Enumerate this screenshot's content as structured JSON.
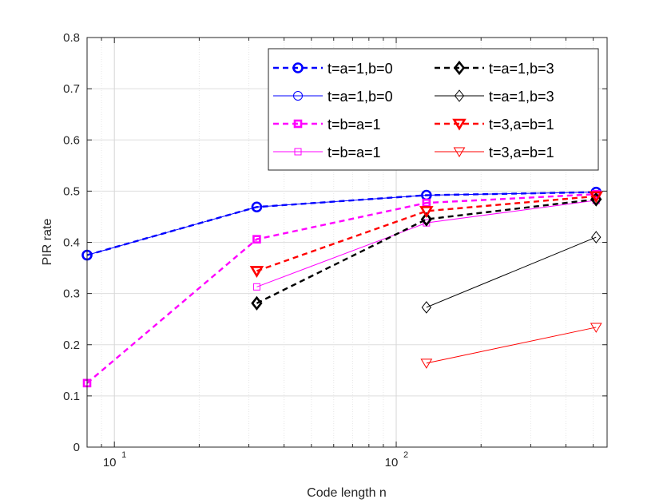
{
  "chart_data": {
    "type": "line",
    "title": "",
    "xlabel": "Code length n",
    "ylabel": "PIR rate",
    "xscale": "log",
    "xlim": [
      8,
      560
    ],
    "ylim": [
      0,
      0.8
    ],
    "grid": true,
    "legend_position": "top-right",
    "y_ticks": [
      "0",
      "0.1",
      "0.2",
      "0.3",
      "0.4",
      "0.5",
      "0.6",
      "0.7",
      "0.8"
    ],
    "x_ticks": [
      {
        "value": 10,
        "base": "10",
        "exp": "1"
      },
      {
        "value": 100,
        "base": "10",
        "exp": "2"
      }
    ],
    "series": [
      {
        "name": "t=a=1,b=0",
        "color": "#0000ff",
        "dashed": true,
        "marker": "circle",
        "bold": true,
        "points": [
          [
            8,
            0.375
          ],
          [
            32,
            0.469
          ],
          [
            128,
            0.492
          ],
          [
            512,
            0.498
          ]
        ]
      },
      {
        "name": "t=a=1,b=0",
        "color": "#0000ff",
        "dashed": false,
        "marker": "circle",
        "bold": false,
        "points": [
          [
            8,
            0.375
          ],
          [
            32,
            0.469
          ],
          [
            128,
            0.492
          ],
          [
            512,
            0.498
          ]
        ]
      },
      {
        "name": "t=b=a=1",
        "color": "#ff00ff",
        "dashed": true,
        "marker": "square",
        "bold": true,
        "points": [
          [
            8,
            0.125
          ],
          [
            32,
            0.406
          ],
          [
            128,
            0.477
          ],
          [
            512,
            0.494
          ]
        ]
      },
      {
        "name": "t=b=a=1",
        "color": "#ff00ff",
        "dashed": false,
        "marker": "square",
        "bold": false,
        "points": [
          [
            32,
            0.313
          ],
          [
            128,
            0.438
          ],
          [
            512,
            0.482
          ]
        ]
      },
      {
        "name": "t=a=1,b=3",
        "color": "#000000",
        "dashed": true,
        "marker": "diamond",
        "bold": true,
        "points": [
          [
            32,
            0.281
          ],
          [
            128,
            0.445
          ],
          [
            512,
            0.484
          ]
        ]
      },
      {
        "name": "t=a=1,b=3",
        "color": "#000000",
        "dashed": false,
        "marker": "diamond",
        "bold": false,
        "points": [
          [
            128,
            0.273
          ],
          [
            512,
            0.41
          ]
        ]
      },
      {
        "name": "t=3,a=b=1",
        "color": "#ff0000",
        "dashed": true,
        "marker": "triangle",
        "bold": true,
        "points": [
          [
            32,
            0.344
          ],
          [
            128,
            0.461
          ],
          [
            512,
            0.49
          ]
        ]
      },
      {
        "name": "t=3,a=b=1",
        "color": "#ff0000",
        "dashed": false,
        "marker": "triangle",
        "bold": false,
        "points": [
          [
            128,
            0.164
          ],
          [
            512,
            0.234
          ]
        ]
      }
    ],
    "legend_order": [
      0,
      4,
      1,
      5,
      2,
      6,
      3,
      7
    ]
  }
}
